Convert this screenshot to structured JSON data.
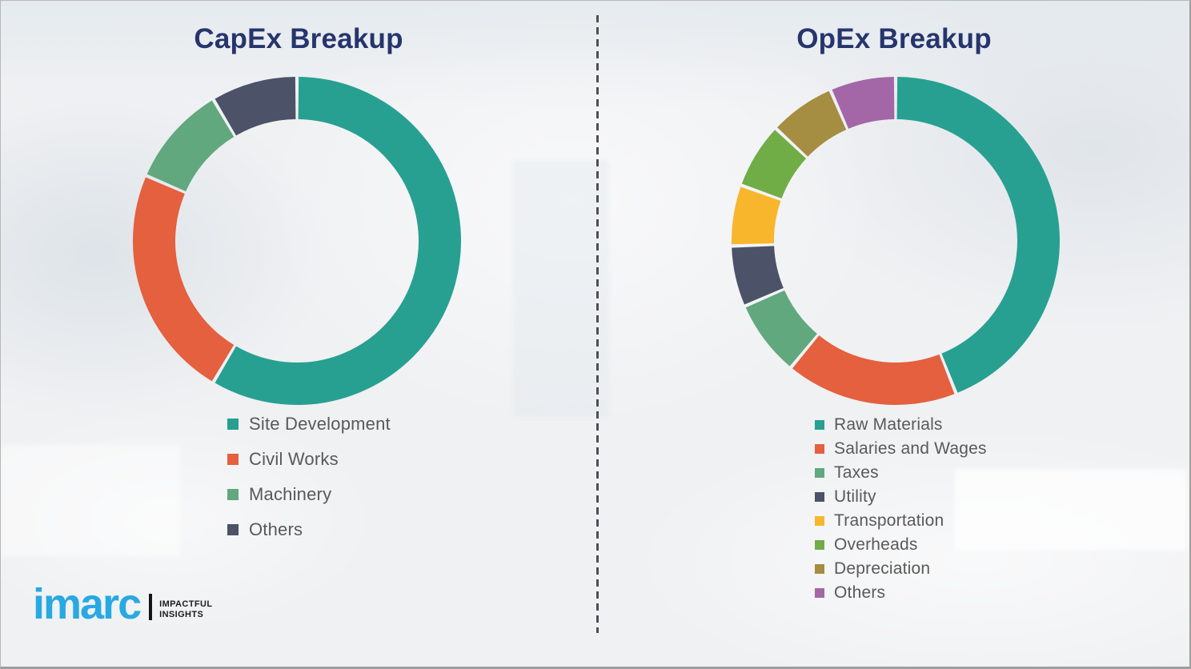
{
  "chart_data": [
    {
      "type": "pie",
      "subtype": "donut",
      "title": "CapEx Breakup",
      "categories": [
        "Site Development",
        "Civil Works",
        "Machinery",
        "Others"
      ],
      "values": [
        58.5,
        23,
        10,
        8.5
      ],
      "unit": "%",
      "values_estimated_from_arc_angles": true,
      "colors": [
        "#27a092",
        "#e4603e",
        "#61a87e",
        "#4c5268"
      ],
      "start_angle_deg": 0,
      "direction": "clockwise",
      "legend_position": "below-left",
      "data_labels": "none"
    },
    {
      "type": "pie",
      "subtype": "donut",
      "title": "OpEx Breakup",
      "categories": [
        "Raw Materials",
        "Salaries and Wages",
        "Taxes",
        "Utility",
        "Transportation",
        "Overheads",
        "Depreciation",
        "Others"
      ],
      "values": [
        44,
        17,
        7.5,
        6,
        6,
        6.5,
        6.5,
        6.5
      ],
      "unit": "%",
      "values_estimated_from_arc_angles": true,
      "colors": [
        "#27a092",
        "#e4603e",
        "#61a87e",
        "#4c5268",
        "#f8b62d",
        "#70ad47",
        "#a58d41",
        "#a367a8"
      ],
      "start_angle_deg": 0,
      "direction": "clockwise",
      "legend_position": "below-left",
      "data_labels": "none"
    }
  ],
  "logo": {
    "brand": "imarc",
    "brand_color": "#29a9e2",
    "tagline_line1": "IMPACTFUL",
    "tagline_line2": "INSIGHTS"
  },
  "style": {
    "title_color": "#26356c",
    "legend_text_color": "#595959",
    "background_color": "#f0f1f3"
  }
}
